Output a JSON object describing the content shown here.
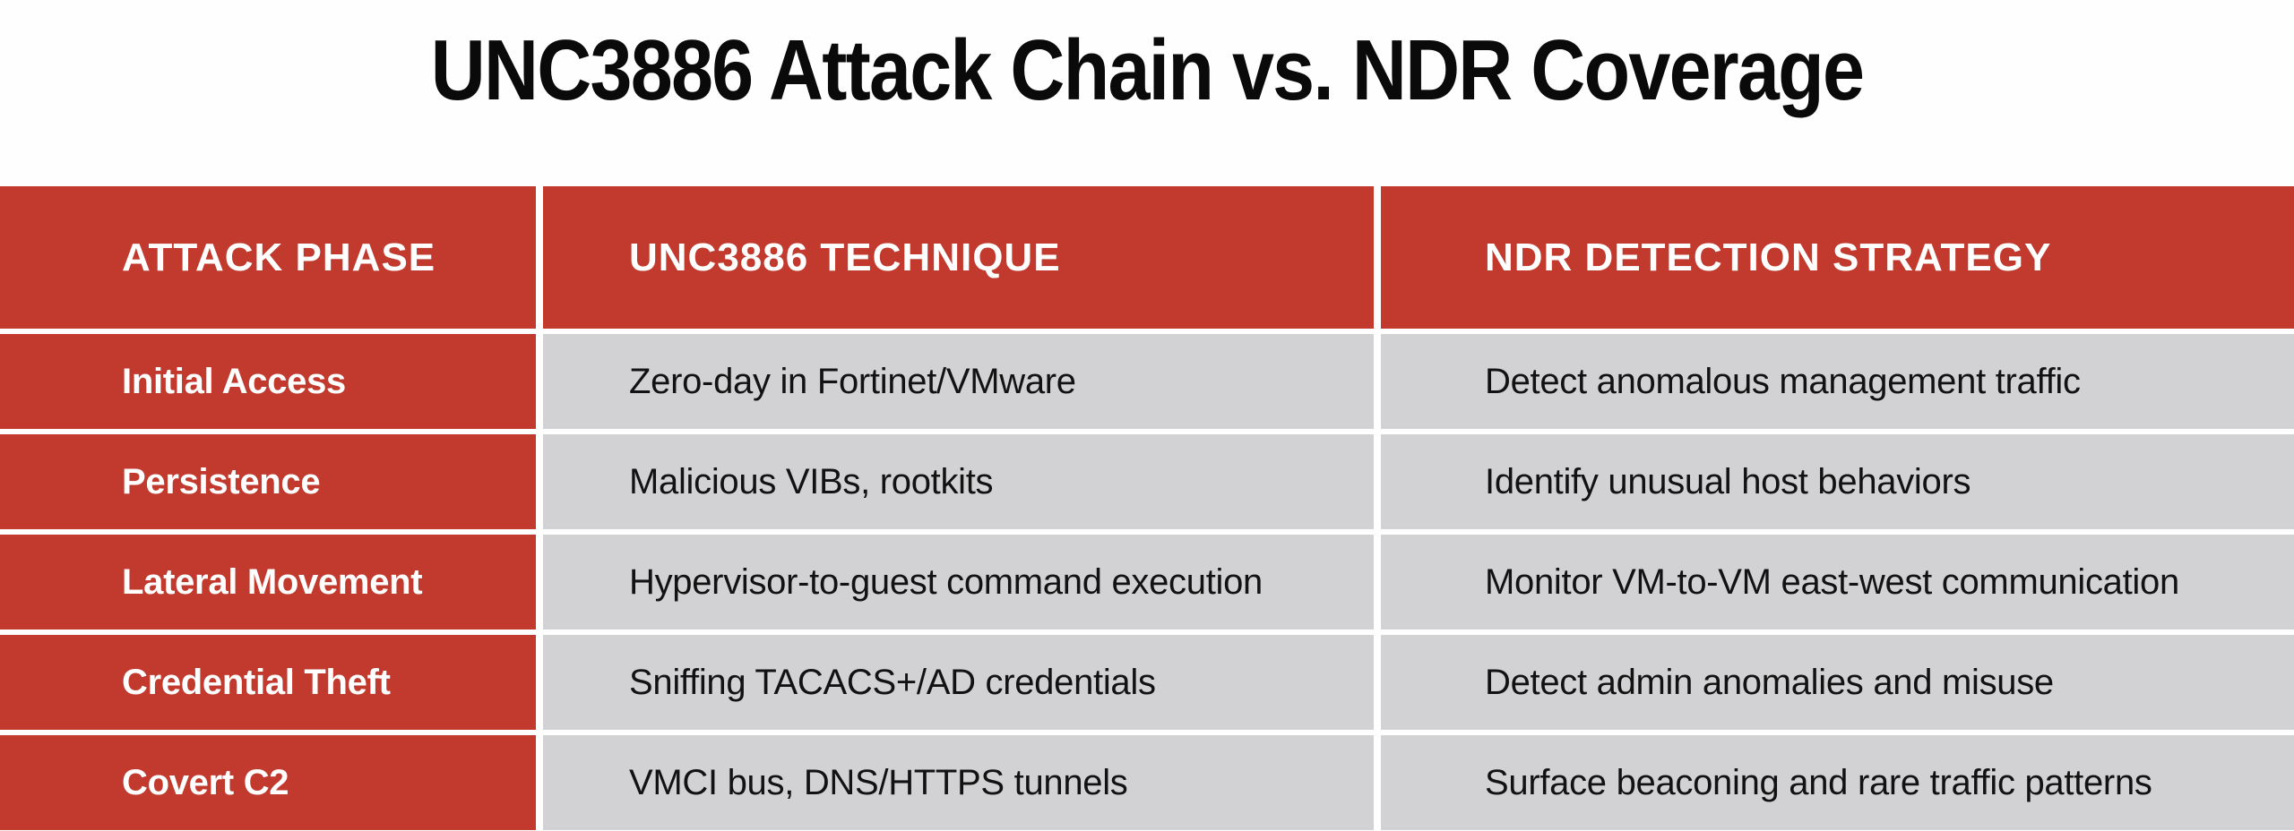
{
  "page": {
    "title": "UNC3886 Attack Chain vs. NDR Coverage"
  },
  "colors": {
    "header_red": "#c13a2d",
    "row_gray": "#d2d2d4",
    "header_text": "#ffffff",
    "body_text": "#121212",
    "title_text": "#0a0a0a",
    "background": "#ffffff"
  },
  "table": {
    "columns": [
      "ATTACK PHASE",
      "UNC3886 TECHNIQUE",
      "NDR DETECTION STRATEGY"
    ],
    "rows": [
      {
        "phase": "Initial Access",
        "technique": "Zero-day in Fortinet/VMware",
        "detection": "Detect anomalous management traffic"
      },
      {
        "phase": "Persistence",
        "technique": "Malicious VIBs, rootkits",
        "detection": "Identify unusual host behaviors"
      },
      {
        "phase": "Lateral Movement",
        "technique": "Hypervisor-to-guest command execution",
        "detection": "Monitor VM-to-VM east-west communication"
      },
      {
        "phase": "Credential Theft",
        "technique": "Sniffing TACACS+/AD credentials",
        "detection": "Detect admin anomalies and misuse"
      },
      {
        "phase": "Covert C2",
        "technique": "VMCI bus, DNS/HTTPS tunnels",
        "detection": "Surface beaconing and rare traffic patterns"
      }
    ]
  }
}
